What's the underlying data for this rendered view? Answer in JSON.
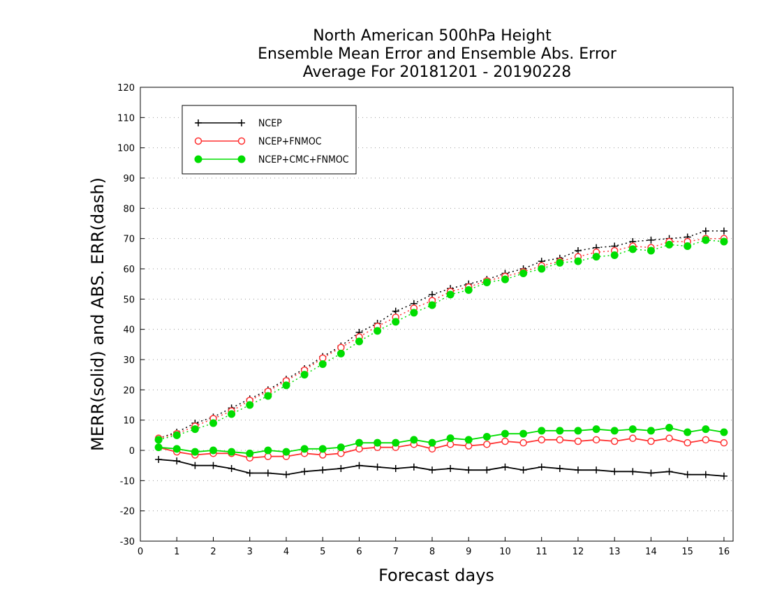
{
  "chart_data": {
    "type": "line",
    "title": [
      "North American 500hPa Height",
      "Ensemble Mean Error and Ensemble Abs. Error",
      "Average For 20181201 - 20190228"
    ],
    "xlabel": "Forecast days",
    "ylabel": "MERR(solid) and ABS. ERR(dash)",
    "xlim": [
      0,
      16.25
    ],
    "ylim": [
      -30,
      120
    ],
    "xticks": [
      0,
      1,
      2,
      3,
      4,
      5,
      6,
      7,
      8,
      9,
      10,
      11,
      12,
      13,
      14,
      15,
      16
    ],
    "yticks": [
      -30,
      -20,
      -10,
      0,
      10,
      20,
      30,
      40,
      50,
      60,
      70,
      80,
      90,
      100,
      110,
      120
    ],
    "grid": "horizontal dotted",
    "legend_position": "top-left",
    "x": [
      0.5,
      1,
      1.5,
      2,
      2.5,
      3,
      3.5,
      4,
      4.5,
      5,
      5.5,
      6,
      6.5,
      7,
      7.5,
      8,
      8.5,
      9,
      9.5,
      10,
      10.5,
      11,
      11.5,
      12,
      12.5,
      13,
      13.5,
      14,
      14.5,
      15,
      15.5,
      16
    ],
    "series": [
      {
        "name": "NCEP",
        "color": "#000000",
        "marker": "plus",
        "merr": [
          -3,
          -3.5,
          -5,
          -5,
          -6,
          -7.5,
          -7.5,
          -8,
          -7,
          -6.5,
          -6,
          -5,
          -5.5,
          -6,
          -5.5,
          -6.5,
          -6,
          -6.5,
          -6.5,
          -5.5,
          -6.5,
          -5.5,
          -6,
          -6.5,
          -6.5,
          -7,
          -7,
          -7.5,
          -7,
          -8,
          -8,
          -8.5
        ],
        "abs_err": [
          4,
          6,
          9,
          11,
          14,
          17,
          20,
          23.5,
          27,
          31,
          34.5,
          39,
          42,
          46,
          48.5,
          51.5,
          53.5,
          55,
          56.5,
          58.5,
          60,
          62.5,
          63.5,
          66,
          67,
          67.5,
          69,
          69.5,
          70,
          70.5,
          72.5,
          72.5
        ]
      },
      {
        "name": "NCEP+FNMOC",
        "color": "#ff3030",
        "marker": "open-circle",
        "merr": [
          1,
          -0.5,
          -1.5,
          -1,
          -1,
          -2.5,
          -2,
          -2,
          -1,
          -1.5,
          -1,
          0.5,
          1,
          1,
          2,
          0.5,
          2,
          1.5,
          2,
          3,
          2.5,
          3.5,
          3.5,
          3,
          3.5,
          3,
          4,
          3,
          4,
          2.5,
          3.5,
          2.5
        ],
        "abs_err": [
          4,
          5.5,
          8,
          10.5,
          13,
          16.5,
          19.5,
          23,
          26.5,
          30.5,
          34,
          37.5,
          41,
          44,
          47,
          49.5,
          52.5,
          54,
          56,
          57.5,
          59,
          61,
          62.5,
          64,
          65.5,
          66,
          67.5,
          67,
          69,
          69,
          70,
          70
        ]
      },
      {
        "name": "NCEP+CMC+FNMOC",
        "color": "#00dd00",
        "marker": "filled-circle",
        "merr": [
          1,
          0.5,
          -0.5,
          0,
          -0.5,
          -1,
          0,
          -0.5,
          0.5,
          0.5,
          1,
          2.5,
          2.5,
          2.5,
          3.5,
          2.5,
          4,
          3.5,
          4.5,
          5.5,
          5.5,
          6.5,
          6.5,
          6.5,
          7,
          6.5,
          7,
          6.5,
          7.5,
          6,
          7,
          6
        ],
        "abs_err": [
          3.5,
          5,
          7,
          9,
          12,
          15,
          18,
          21.5,
          25,
          28.5,
          32,
          36,
          39.5,
          42.5,
          45.5,
          48,
          51.5,
          53,
          55.5,
          56.5,
          58.5,
          60,
          62,
          62.5,
          64,
          64.5,
          66.5,
          66,
          68,
          67.5,
          69.5,
          69
        ]
      }
    ]
  }
}
